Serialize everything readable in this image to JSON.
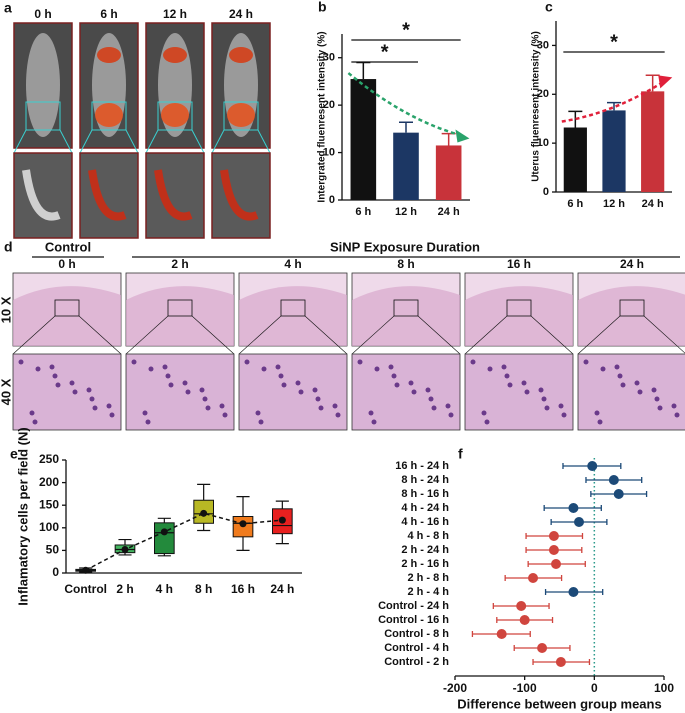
{
  "panel_a": {
    "letter": "a",
    "times": [
      "0 h",
      "6 h",
      "12 h",
      "24 h"
    ]
  },
  "panel_d": {
    "letter": "d",
    "control": "Control",
    "exposure": "SiNP Exposure Duration",
    "times": [
      "0 h",
      "2 h",
      "4 h",
      "8 h",
      "16 h",
      "24 h"
    ],
    "magnifications": [
      "10 X",
      "40 X"
    ]
  },
  "chart_data": [
    {
      "type": "bar",
      "panel": "b",
      "ylabel": "Intergrated fluenresent intensity (%)",
      "categories": [
        "6 h",
        "12 h",
        "24 h"
      ],
      "values": [
        25.5,
        14.2,
        11.5
      ],
      "errors": [
        3.5,
        2.2,
        2.5
      ],
      "colors": [
        "#111111",
        "#1c3764",
        "#c8333a"
      ],
      "ylim": [
        0,
        35
      ],
      "yticks": [
        0,
        10,
        20,
        30
      ],
      "significance": [
        "*",
        "*"
      ],
      "trend_color": "#2aa36b"
    },
    {
      "type": "bar",
      "panel": "c",
      "ylabel": "Uterus fluenresent intensity (%)",
      "categories": [
        "6 h",
        "12 h",
        "24 h"
      ],
      "values": [
        13.2,
        16.7,
        20.6
      ],
      "errors": [
        3.3,
        1.6,
        3.3
      ],
      "colors": [
        "#111111",
        "#1c3764",
        "#c8333a"
      ],
      "ylim": [
        0,
        35
      ],
      "yticks": [
        0,
        10,
        20,
        30
      ],
      "significance": [
        "*"
      ],
      "trend_color": "#e0203a"
    },
    {
      "type": "box",
      "panel": "e",
      "ylabel": "Inflamatory cells per field (N)",
      "categories": [
        "Control",
        "2 h",
        "4 h",
        "8 h",
        "16 h",
        "24 h"
      ],
      "boxes": [
        {
          "min": 2,
          "q1": 4,
          "median": 6,
          "q3": 8,
          "max": 11,
          "mean": 6
        },
        {
          "min": 40,
          "q1": 45,
          "median": 52,
          "q3": 62,
          "max": 74,
          "mean": 52
        },
        {
          "min": 38,
          "q1": 43,
          "median": 89,
          "q3": 111,
          "max": 121,
          "mean": 91
        },
        {
          "min": 94,
          "q1": 110,
          "median": 131,
          "q3": 161,
          "max": 196,
          "mean": 132
        },
        {
          "min": 50,
          "q1": 80,
          "median": 110,
          "q3": 125,
          "max": 169,
          "mean": 109
        },
        {
          "min": 65,
          "q1": 87,
          "median": 105,
          "q3": 142,
          "max": 159,
          "mean": 117
        }
      ],
      "colors": [
        "#2c5a5a",
        "#44b560",
        "#238a3c",
        "#b8b824",
        "#f07b1d",
        "#e8201f"
      ],
      "ylim": [
        0,
        250
      ],
      "yticks": [
        0,
        50,
        100,
        150,
        200,
        250
      ]
    },
    {
      "type": "forest",
      "panel": "f",
      "xlabel": "Difference between group means",
      "categories": [
        "16 h - 24 h",
        "8 h - 24 h",
        "8 h - 16 h",
        "4 h - 24 h",
        "4 h - 16 h",
        "4 h - 8 h",
        "2 h - 24 h",
        "2 h - 16 h",
        "2 h - 8 h",
        "2 h - 4 h",
        "Control - 24 h",
        "Control - 16 h",
        "Control - 8 h",
        "Control - 4 h",
        "Control - 2 h"
      ],
      "values": [
        -3,
        28,
        35,
        -30,
        -22,
        -58,
        -58,
        -55,
        -88,
        -30,
        -105,
        -100,
        -133,
        -75,
        -48
      ],
      "lower": [
        -45,
        -12,
        -5,
        -72,
        -62,
        -98,
        -98,
        -95,
        -128,
        -70,
        -145,
        -140,
        -175,
        -115,
        -88
      ],
      "upper": [
        38,
        68,
        75,
        10,
        18,
        -17,
        -18,
        -13,
        -47,
        12,
        -65,
        -60,
        -92,
        -35,
        -7
      ],
      "colors": [
        "#1c4a78",
        "#1c4a78",
        "#1c4a78",
        "#1c4a78",
        "#1c4a78",
        "#d0453e",
        "#d0453e",
        "#d0453e",
        "#d0453e",
        "#1c4a78",
        "#d0453e",
        "#d0453e",
        "#d0453e",
        "#d0453e",
        "#d0453e"
      ],
      "xlim": [
        -200,
        100
      ],
      "xticks": [
        -200,
        -100,
        0,
        100
      ],
      "zero_line_color": "#2a9a8a"
    }
  ]
}
